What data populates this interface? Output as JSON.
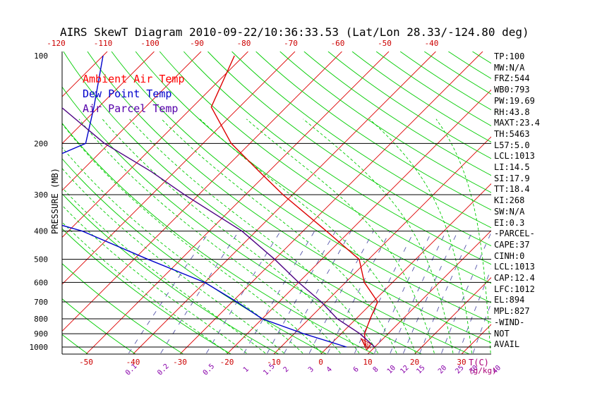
{
  "chart_data": {
    "type": "line",
    "title": "AIRS SkewT Diagram 2010-09-22/10:36:33.53 (Lat/Lon 28.33/-124.80 deg)",
    "ylabel": "PRESSURE (MB)",
    "xlabel": "T(C)",
    "mixing_ratio_unit": "(g/kg)",
    "pressure_ticks": [
      100,
      200,
      300,
      400,
      500,
      600,
      700,
      800,
      900,
      1000
    ],
    "top_temp_ticks": [
      -120,
      -110,
      -100,
      -90,
      -80,
      -70,
      -60,
      -50,
      -40
    ],
    "bottom_temp_ticks": [
      -50,
      -40,
      -30,
      -20,
      -10,
      0,
      10,
      20,
      30
    ],
    "mixing_ratio_labels": [
      "0.1",
      "0.2",
      "0.5",
      "1",
      "1.5",
      "2",
      "3",
      "4",
      "6",
      "8",
      "10",
      "12",
      "15",
      "20",
      "25",
      "30",
      "40"
    ],
    "legend": [
      {
        "label": "Ambient Air Temp",
        "color": "#ff0000"
      },
      {
        "label": "Dew Point Temp",
        "color": "#0000cc"
      },
      {
        "label": "Air Parcel Temp",
        "color": "#5500aa"
      }
    ],
    "series": [
      {
        "name": "Ambient Air Temp",
        "color": "#dd0000",
        "pressure": [
          100,
          150,
          200,
          250,
          300,
          400,
          500,
          600,
          700,
          800,
          900,
          1000
        ],
        "temp": [
          -82,
          -76,
          -64,
          -52,
          -42,
          -25,
          -12,
          -6,
          1,
          3,
          5,
          8
        ]
      },
      {
        "name": "Dew Point Temp",
        "color": "#0000cc",
        "pressure": [
          100,
          150,
          200,
          250,
          300,
          400,
          500,
          600,
          700,
          800,
          900,
          1000
        ],
        "temp": [
          -110,
          -101,
          -95,
          -103,
          -112,
          -77,
          -57,
          -40,
          -29,
          -20,
          -8,
          4
        ]
      },
      {
        "name": "Air Parcel Temp",
        "color": "#4b0082",
        "pressure": [
          100,
          150,
          200,
          250,
          300,
          400,
          500,
          600,
          700,
          800,
          900,
          1000
        ],
        "temp": [
          -124,
          -108,
          -91,
          -75,
          -63,
          -43,
          -30,
          -20,
          -11,
          -4,
          4,
          10
        ]
      }
    ]
  },
  "stats": [
    "TP:100",
    "MW:N/A",
    "FRZ:544",
    "WB0:793",
    "PW:19.69",
    "RH:43.8",
    "MAXT:23.4",
    "TH:5463",
    "L57:5.0",
    "LCL:1013",
    "LI:14.5",
    "SI:17.9",
    "TT:18.4",
    "KI:268",
    "SW:N/A",
    "EI:0.3",
    "-PARCEL-",
    "CAPE:37",
    "CINH:0",
    "LCL:1013",
    "CAP:12.4",
    "LFC:1012",
    "EL:894",
    "MPL:827",
    "-WIND-",
    "NOT",
    "AVAIL"
  ]
}
